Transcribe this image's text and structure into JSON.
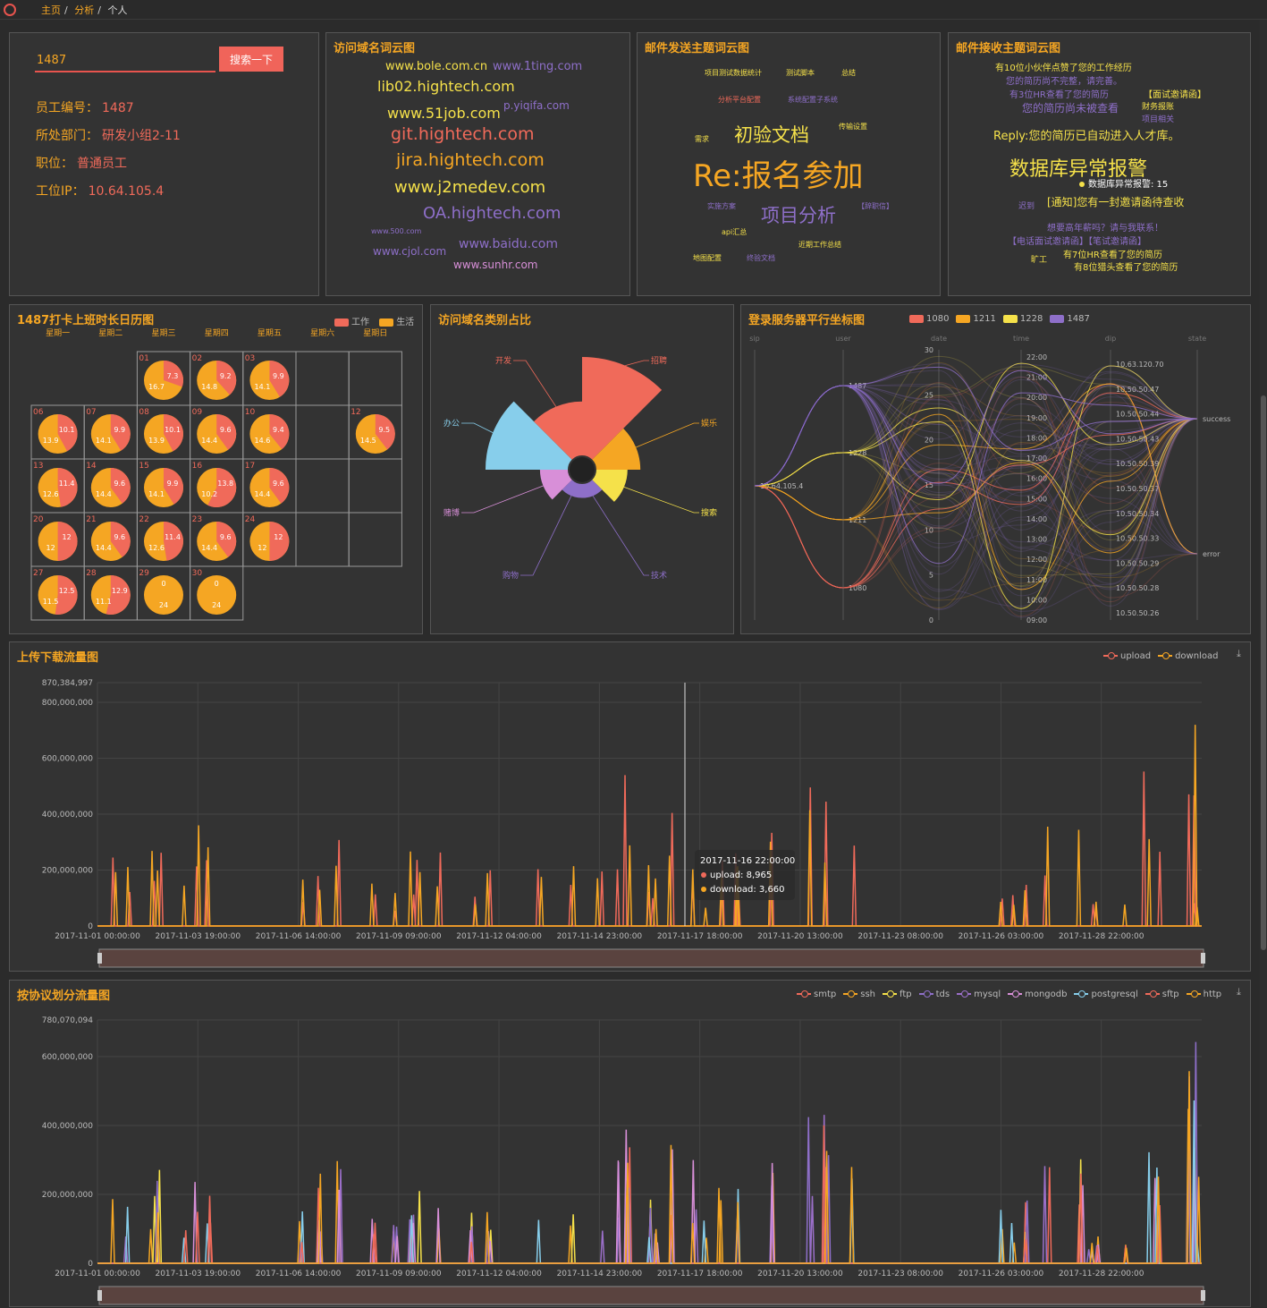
{
  "breadcrumb": [
    "主页",
    "分析",
    "个人"
  ],
  "search": {
    "value": "1487",
    "button": "搜索一下"
  },
  "employee": [
    {
      "label": "员工编号：",
      "value": "1487"
    },
    {
      "label": "所处部门：",
      "value": "研发小组2-11"
    },
    {
      "label": "职位：",
      "value": "普通员工"
    },
    {
      "label": "工位IP：",
      "value": "10.64.105.4"
    }
  ],
  "domain_cloud": {
    "title": "访问域名词云图",
    "words": [
      {
        "t": "www.bole.com.cn",
        "c": "#f5e14a"
      },
      {
        "t": "www.1ting.com",
        "c": "#8e6fc9"
      },
      {
        "t": "lib02.hightech.com",
        "c": "#f5e14a"
      },
      {
        "t": "www.51job.com",
        "c": "#f5e14a"
      },
      {
        "t": "p.yiqifa.com",
        "c": "#8e6fc9"
      },
      {
        "t": "git.hightech.com",
        "c": "#f06a5a"
      },
      {
        "t": "jira.hightech.com",
        "c": "#f5a623"
      },
      {
        "t": "www.j2medev.com",
        "c": "#f5e14a"
      },
      {
        "t": "OA.hightech.com",
        "c": "#8e6fc9"
      },
      {
        "t": "www.500.com",
        "c": "#8e6fc9"
      },
      {
        "t": "www.baidu.com",
        "c": "#8e6fc9"
      },
      {
        "t": "www.cjol.com",
        "c": "#8e6fc9"
      },
      {
        "t": "www.sunhr.com",
        "c": "#d88fd8"
      }
    ]
  },
  "mail_send_cloud": {
    "title": "邮件发送主题词云图",
    "words": [
      {
        "t": "项目测试数据统计",
        "c": "#f5e14a"
      },
      {
        "t": "测试脚本",
        "c": "#f5e14a"
      },
      {
        "t": "总结",
        "c": "#f5e14a"
      },
      {
        "t": "分析平台配置",
        "c": "#f06a5a"
      },
      {
        "t": "系统配置子系统",
        "c": "#8e6fc9"
      },
      {
        "t": "初验文档",
        "c": "#f5e14a"
      },
      {
        "t": "传输设置",
        "c": "#f5e14a"
      },
      {
        "t": "需求",
        "c": "#f5e14a"
      },
      {
        "t": "Re:报名参加",
        "c": "#f5a623"
      },
      {
        "t": "实施方案",
        "c": "#8e6fc9"
      },
      {
        "t": "项目分析",
        "c": "#8e6fc9"
      },
      {
        "t": "【辞职信】",
        "c": "#8e6fc9"
      },
      {
        "t": "api汇总",
        "c": "#f5e14a"
      },
      {
        "t": "近期工作总结",
        "c": "#f5e14a"
      },
      {
        "t": "地图配置",
        "c": "#f5e14a"
      },
      {
        "t": "终验文档",
        "c": "#8e6fc9"
      }
    ]
  },
  "mail_recv_cloud": {
    "title": "邮件接收主题词云图",
    "words": [
      {
        "t": "有10位小伙伴点赞了您的工作经历",
        "c": "#f5e14a"
      },
      {
        "t": "您的简历尚不完整，请完善。",
        "c": "#8e6fc9"
      },
      {
        "t": "有3位HR查看了您的简历",
        "c": "#8e6fc9"
      },
      {
        "t": "【面试邀请函】",
        "c": "#f5e14a"
      },
      {
        "t": "您的简历尚未被查看",
        "c": "#8e6fc9"
      },
      {
        "t": "财务报账",
        "c": "#f5e14a"
      },
      {
        "t": "项目相关",
        "c": "#8e6fc9"
      },
      {
        "t": "Reply:您的简历已自动进入人才库。",
        "c": "#f5e14a"
      },
      {
        "t": "数据库异常报警",
        "c": "#f5e14a"
      },
      {
        "t": "迟到",
        "c": "#8e6fc9"
      },
      {
        "t": "[通知]您有一封邀请函待查收",
        "c": "#f5e14a"
      },
      {
        "t": "想要高年薪吗？请与我联系！",
        "c": "#8e6fc9"
      },
      {
        "t": "【电话面试邀请函】【笔试邀请函】",
        "c": "#8e6fc9"
      },
      {
        "t": "旷工",
        "c": "#f5e14a"
      },
      {
        "t": "有7位HR查看了您的简历",
        "c": "#f5e14a"
      },
      {
        "t": "有8位猎头查看了您的简历",
        "c": "#f5e14a"
      }
    ],
    "tooltip": "数据库异常报警: 15"
  },
  "calendar": {
    "title": "1487打卡上班时长日历图",
    "legend": [
      "工作",
      "生活"
    ],
    "colors": {
      "work": "#f06a5a",
      "life": "#f5a623"
    },
    "weekdays": [
      "星期一",
      "星期二",
      "星期三",
      "星期四",
      "星期五",
      "星期六",
      "星期日"
    ],
    "days": [
      {
        "d": "01",
        "w": 7.3,
        "l": 16.7,
        "col": 2,
        "row": 0
      },
      {
        "d": "02",
        "w": 9.2,
        "l": 14.8,
        "col": 3,
        "row": 0
      },
      {
        "d": "03",
        "w": 9.9,
        "l": 14.1,
        "col": 4,
        "row": 0
      },
      {
        "d": "06",
        "w": 10.1,
        "l": 13.9,
        "col": 0,
        "row": 1
      },
      {
        "d": "07",
        "w": 9.9,
        "l": 14.1,
        "col": 1,
        "row": 1
      },
      {
        "d": "08",
        "w": 10.1,
        "l": 13.9,
        "col": 2,
        "row": 1
      },
      {
        "d": "09",
        "w": 9.6,
        "l": 14.4,
        "col": 3,
        "row": 1
      },
      {
        "d": "10",
        "w": 9.4,
        "l": 14.6,
        "col": 4,
        "row": 1
      },
      {
        "d": "12",
        "w": 9.5,
        "l": 14.5,
        "col": 6,
        "row": 1
      },
      {
        "d": "13",
        "w": 11.4,
        "l": 12.6,
        "col": 0,
        "row": 2
      },
      {
        "d": "14",
        "w": 9.6,
        "l": 14.4,
        "col": 1,
        "row": 2
      },
      {
        "d": "15",
        "w": 9.9,
        "l": 14.1,
        "col": 2,
        "row": 2
      },
      {
        "d": "16",
        "w": 13.8,
        "l": 10.2,
        "col": 3,
        "row": 2
      },
      {
        "d": "17",
        "w": 9.6,
        "l": 14.4,
        "col": 4,
        "row": 2
      },
      {
        "d": "20",
        "w": 12,
        "l": 12,
        "col": 0,
        "row": 3
      },
      {
        "d": "21",
        "w": 9.6,
        "l": 14.4,
        "col": 1,
        "row": 3
      },
      {
        "d": "22",
        "w": 11.4,
        "l": 12.6,
        "col": 2,
        "row": 3
      },
      {
        "d": "23",
        "w": 9.6,
        "l": 14.4,
        "col": 3,
        "row": 3
      },
      {
        "d": "24",
        "w": 12,
        "l": 12,
        "col": 4,
        "row": 3
      },
      {
        "d": "27",
        "w": 12.5,
        "l": 11.5,
        "col": 0,
        "row": 4
      },
      {
        "d": "28",
        "w": 12.9,
        "l": 11.1,
        "col": 1,
        "row": 4
      },
      {
        "d": "29",
        "w": 0,
        "l": 24,
        "col": 2,
        "row": 4
      },
      {
        "d": "30",
        "w": 0,
        "l": 24,
        "col": 3,
        "row": 4
      }
    ]
  },
  "domain_category": {
    "title": "访问域名类别占比",
    "chart_data": {
      "type": "pie",
      "categories": [
        "招聘",
        "娱乐",
        "搜索",
        "技术",
        "购物",
        "赌博",
        "办公",
        "开发"
      ],
      "values": [
        100,
        20,
        10,
        2,
        2,
        8,
        70,
        30
      ],
      "colors": [
        "#f06a5a",
        "#f5a623",
        "#f5e14a",
        "#8e6fc9",
        "#8e6fc9",
        "#d88fd8",
        "#87ceeb",
        "#f06a5a"
      ]
    }
  },
  "parallel": {
    "title": "登录服务器平行坐标图",
    "legend": [
      {
        "name": "1080",
        "color": "#f06a5a"
      },
      {
        "name": "1211",
        "color": "#f5a623"
      },
      {
        "name": "1228",
        "color": "#f5e14a"
      },
      {
        "name": "1487",
        "color": "#8e6fc9"
      }
    ],
    "axes": [
      "sip",
      "user",
      "date",
      "time",
      "dip",
      "state"
    ],
    "sip_label": "10.64.105.4",
    "user_labels": [
      "1487",
      "1228",
      "1211",
      "1080"
    ],
    "date_ticks": [
      "30",
      "25",
      "20",
      "15",
      "10",
      "5",
      "0"
    ],
    "time_ticks": [
      "22:00",
      "21:00",
      "20:00",
      "19:00",
      "18:00",
      "17:00",
      "16:00",
      "15:00",
      "14:00",
      "13:00",
      "12:00",
      "11:00",
      "10:00",
      "09:00"
    ],
    "dip_ticks": [
      "10.63.120.70",
      "10.50.50.47",
      "10.50.50.44",
      "10.50.50.43",
      "10.50.50.39",
      "10.50.50.37",
      "10.50.50.34",
      "10.50.50.33",
      "10.50.50.29",
      "10.50.50.28",
      "10.50.50.26"
    ],
    "state_labels": [
      "success",
      "error"
    ]
  },
  "updown": {
    "title": "上传下载流量图",
    "legend": [
      {
        "name": "upload",
        "color": "#f06a5a"
      },
      {
        "name": "download",
        "color": "#f5a623"
      }
    ],
    "yticks": [
      "870,384,997",
      "800,000,000",
      "600,000,000",
      "400,000,000",
      "200,000,000",
      "0"
    ],
    "xticks": [
      "2017-11-01 00:00:00",
      "2017-11-03 19:00:00",
      "2017-11-06 14:00:00",
      "2017-11-09 09:00:00",
      "2017-11-12 04:00:00",
      "2017-11-14 23:00:00",
      "2017-11-17 18:00:00",
      "2017-11-20 13:00:00",
      "2017-11-23 08:00:00",
      "2017-11-26 03:00:00",
      "2017-11-28 22:00:00"
    ],
    "tooltip": {
      "time": "2017-11-16 22:00:00",
      "upload": "upload: 8,965",
      "download": "download: 3,660"
    }
  },
  "protocol": {
    "title": "按协议划分流量图",
    "legend": [
      {
        "name": "smtp",
        "color": "#f06a5a"
      },
      {
        "name": "ssh",
        "color": "#f5a623"
      },
      {
        "name": "ftp",
        "color": "#f5e14a"
      },
      {
        "name": "tds",
        "color": "#8e6fc9"
      },
      {
        "name": "mysql",
        "color": "#9b6fc9"
      },
      {
        "name": "mongodb",
        "color": "#d88fd8"
      },
      {
        "name": "postgresql",
        "color": "#87ceeb"
      },
      {
        "name": "sftp",
        "color": "#f06a5a"
      },
      {
        "name": "http",
        "color": "#f5a623"
      }
    ],
    "yticks": [
      "780,070,094",
      "600,000,000",
      "400,000,000",
      "200,000,000",
      "0"
    ],
    "xticks": [
      "2017-11-01 00:00:00",
      "2017-11-03 19:00:00",
      "2017-11-06 14:00:00",
      "2017-11-09 09:00:00",
      "2017-11-12 04:00:00",
      "2017-11-14 23:00:00",
      "2017-11-17 18:00:00",
      "2017-11-20 13:00:00",
      "2017-11-23 08:00:00",
      "2017-11-26 03:00:00",
      "2017-11-28 22:00:00"
    ]
  }
}
